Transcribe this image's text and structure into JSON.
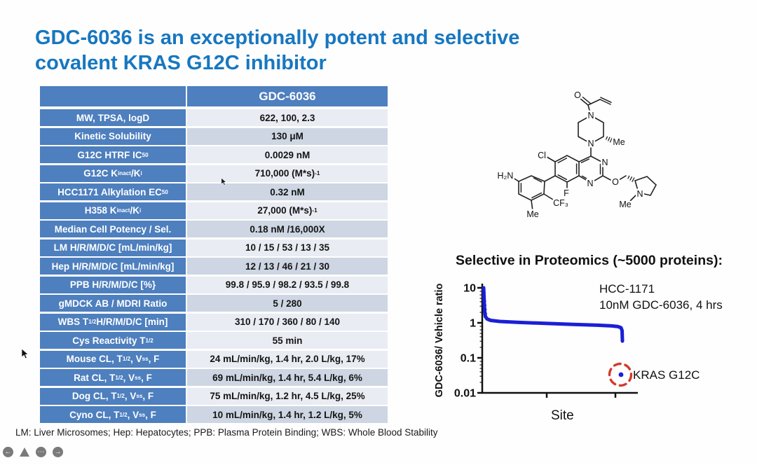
{
  "slide": {
    "title_line1": "GDC-6036 is an exceptionally potent and selective",
    "title_line2": "covalent KRAS G12C inhibitor",
    "footnote": "LM: Liver Microsomes; Hep: Hepatocytes; PPB: Plasma Protein Binding; WBS: Whole Blood Stability"
  },
  "table": {
    "header": "GDC-6036",
    "rows": [
      {
        "label": "MW, TPSA, logD",
        "value": "622, 100, 2.3"
      },
      {
        "label": "Kinetic Solubility",
        "value": "130 μM"
      },
      {
        "label": "G12C HTRF IC<sub>50</sub>",
        "value": "0.0029 nM"
      },
      {
        "label": "G12C K<sub>inact</sub>/K<sub>i</sub>",
        "value": "710,000 (M*s)<sup>-1</sup>"
      },
      {
        "label": "HCC1171 Alkylation EC<sub>50</sub>",
        "value": "0.32 nM"
      },
      {
        "label": "H358 K<sub>inact</sub>/K<sub>i</sub>",
        "value": "27,000 (M*s)<sup>-1</sup>"
      },
      {
        "label": "Median Cell Potency / Sel.",
        "value": "0.18 nM /16,000X"
      },
      {
        "label": "LM H/R/M/D/C [mL/min/kg]",
        "value": "10 / 15 / 53 / 13 / 35"
      },
      {
        "label": "Hep H/R/M/D/C [mL/min/kg]",
        "value": "12 / 13 / 46 / 21 / 30"
      },
      {
        "label": "PPB H/R/M/D/C [%}",
        "value": "99.8 / 95.9 / 98.2 / 93.5 / 99.8"
      },
      {
        "label": "gMDCK AB / MDRI Ratio",
        "value": "5 / 280"
      },
      {
        "label": "WBS T<sub>1/2</sub> H/R/M/D/C [min]",
        "value": "310 / 170 / 360 / 80 / 140"
      },
      {
        "label": "Cys Reactivity T<sub>1/2</sub>",
        "value": "55 min"
      },
      {
        "label": "Mouse CL, T<sub>1/2</sub>, V<sub>ss</sub>, F",
        "value": "24 mL/min/kg, 1.4 hr, 2.0 L/kg, 17%"
      },
      {
        "label": "Rat CL, T<sub>1/2</sub>, V<sub>ss</sub>, F",
        "value": "69 mL/min/kg, 1.4 hr, 5.4 L/kg, 6%"
      },
      {
        "label": "Dog CL, T<sub>1/2</sub>, V<sub>ss</sub>, F",
        "value": "75 mL/min/kg, 1.2 hr, 4.5 L/kg, 25%"
      },
      {
        "label": "Cyno CL, T<sub>1/2</sub>, V<sub>ss</sub>, F",
        "value": "10 mL/min/kg, 1.4 hr, 1.2 L/kg, 5%"
      }
    ]
  },
  "molecule": {
    "description": "GDC-6036 chemical structure (skeletal drawing)",
    "atom_labels": [
      {
        "text": "O"
      },
      {
        "text": "N"
      },
      {
        "text": "N"
      },
      {
        "text": "Me"
      },
      {
        "text": "Cl"
      },
      {
        "text": "N"
      },
      {
        "text": "N"
      },
      {
        "text": "H₂N"
      },
      {
        "text": "F"
      },
      {
        "text": "CF₃"
      },
      {
        "text": "Me"
      },
      {
        "text": "O"
      },
      {
        "text": "N"
      },
      {
        "text": "Me"
      }
    ]
  },
  "chart": {
    "title": "Selective in Proteomics (~5000 proteins):",
    "ylabel": "GDC-6036/ Vehicle ratio",
    "xlabel": "Site",
    "yticks": [
      "10",
      "1",
      "0.1",
      "0.01"
    ],
    "annotation_line1": "HCC-1171",
    "annotation_line2": "10nM GDC-6036, 4 hrs",
    "outlier_label": "KRAS G12C"
  },
  "chart_data": {
    "type": "scatter",
    "title": "Selective in Proteomics (~5000 proteins):",
    "xlabel": "Site",
    "ylabel": "GDC-6036/ Vehicle ratio",
    "yscale": "log",
    "ylim": [
      0.01,
      10
    ],
    "yticks": [
      10,
      1,
      0.1,
      0.01
    ],
    "x_description": "~5000 proteome cysteine sites, ranked; x axis unlabeled ticks",
    "series": [
      {
        "name": "proteome sites (GDC-6036/vehicle ratio)",
        "color": "#1a1fd6",
        "x_fraction": [
          0.0,
          0.003,
          0.006,
          0.01,
          0.02,
          0.05,
          0.1,
          0.2,
          0.3,
          0.4,
          0.5,
          0.6,
          0.7,
          0.8,
          0.85,
          0.88,
          0.9,
          0.905,
          0.905
        ],
        "values": [
          10,
          6,
          3,
          2,
          1.3,
          1.1,
          1.05,
          1.02,
          1.0,
          0.98,
          0.96,
          0.95,
          0.93,
          0.91,
          0.89,
          0.87,
          0.85,
          0.5,
          0.3
        ]
      },
      {
        "name": "KRAS G12C outlier",
        "color": "#1a1fd6",
        "x_fraction": [
          0.9
        ],
        "values": [
          0.035
        ],
        "annotation": "KRAS G12C",
        "highlight": "red dashed circle"
      }
    ],
    "annotations": [
      "HCC-1171",
      "10nM GDC-6036, 4 hrs"
    ],
    "legend": "none",
    "grid": false
  },
  "viewer_controls": {
    "items": [
      "previous-arrow",
      "pointer-triangle",
      "more-ellipsis",
      "next-arrow"
    ]
  },
  "colors": {
    "title_blue": "#1777c0",
    "table_blue": "#4e7fbe",
    "row_light": "#e9ecf2",
    "row_dark": "#cdd6e2",
    "chart_blue": "#1a1fd6",
    "highlight_red": "#d4392b"
  }
}
